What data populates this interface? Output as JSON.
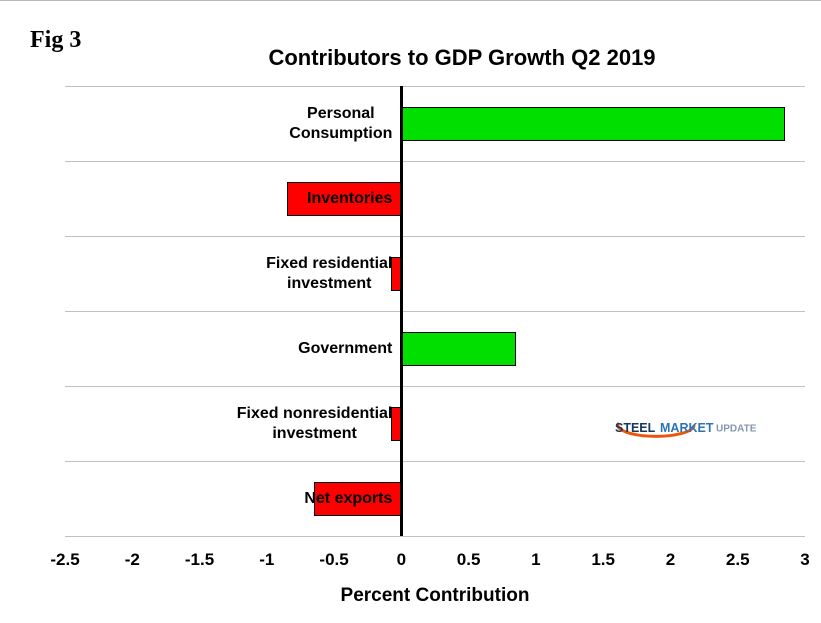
{
  "fig_label": "Fig 3",
  "chart_data": {
    "type": "bar",
    "orientation": "horizontal",
    "title": "Contributors to GDP Growth Q2 2019",
    "xlabel": "Percent Contribution",
    "xlim": [
      -2.5,
      3
    ],
    "xticks": [
      -2.5,
      -2,
      -1.5,
      -1,
      -0.5,
      0,
      0.5,
      1,
      1.5,
      2,
      2.5,
      3
    ],
    "xtick_labels": [
      "-2.5",
      "-2",
      "-1.5",
      "-1",
      "-0.5",
      "0",
      "0.5",
      "1",
      "1.5",
      "2",
      "2.5",
      "3"
    ],
    "categories": [
      "Personal Consumption",
      "Inventories",
      "Fixed residential investment",
      "Government",
      "Fixed nonresidential investment",
      "Net exports"
    ],
    "category_lines": [
      [
        "Personal",
        "Consumption"
      ],
      [
        "Inventories"
      ],
      [
        "Fixed residential",
        "investment"
      ],
      [
        "Government"
      ],
      [
        "Fixed nonresidential",
        "investment"
      ],
      [
        "Net exports"
      ]
    ],
    "values": [
      2.85,
      -0.85,
      -0.08,
      0.85,
      -0.08,
      -0.65
    ],
    "positive_color": "#00df00",
    "negative_color": "#ff0000",
    "bar_border_color": "#000000",
    "zero_axis_color": "#000000",
    "gridline_color": "#c0c0c0",
    "grid": true,
    "legend": false
  },
  "logo": {
    "steel": "STEEL",
    "market": "MARKET",
    "update": "UPDATE",
    "steel_color": "#17365d",
    "market_color": "#2e74b5",
    "update_color": "#8496b0",
    "swoosh_color": "#e8570a"
  }
}
